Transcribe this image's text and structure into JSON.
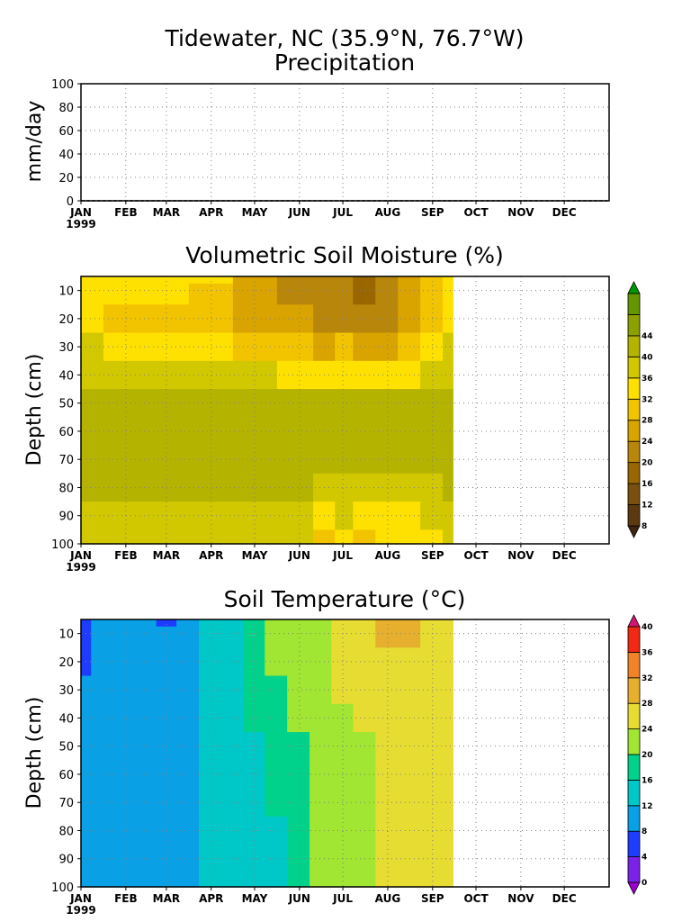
{
  "figure": {
    "title": "Tidewater, NC  (35.9°N, 76.7°W)",
    "colors": {
      "axis": "#000000",
      "grid": "#808080",
      "background": "#ffffff"
    }
  },
  "chart_data": [
    {
      "type": "line",
      "title": "Precipitation",
      "ylabel": "mm/day",
      "xlabel": "",
      "x_ticks": [
        "JAN",
        "FEB",
        "MAR",
        "APR",
        "MAY",
        "JUN",
        "JUL",
        "AUG",
        "SEP",
        "OCT",
        "NOV",
        "DEC"
      ],
      "year_label": "1999",
      "xlim": [
        "1999-01-01",
        "1999-12-31"
      ],
      "y_ticks": [
        0,
        20,
        40,
        60,
        80,
        100
      ],
      "ylim": [
        0,
        100
      ],
      "grid": true,
      "series": [
        {
          "values": [
            0,
            0,
            0,
            0,
            0,
            0,
            0,
            0,
            0,
            0,
            0,
            0,
            0,
            0,
            0,
            0,
            0,
            0,
            0,
            0,
            0,
            0,
            0,
            0,
            0,
            0,
            0,
            0,
            0,
            0,
            0,
            0,
            0,
            0,
            0,
            0,
            0,
            0
          ],
          "x_start": "1999-01-01",
          "x_end": "1999-12-31"
        }
      ]
    },
    {
      "type": "heatmap",
      "title": "Volumetric Soil Moisture (%)",
      "ylabel": "Depth (cm)",
      "x_ticks": [
        "JAN",
        "FEB",
        "MAR",
        "APR",
        "MAY",
        "JUN",
        "JUL",
        "AUG",
        "SEP",
        "OCT",
        "NOV",
        "DEC"
      ],
      "year_label": "1999",
      "y_ticks": [
        10,
        20,
        30,
        40,
        50,
        60,
        70,
        80,
        90,
        100
      ],
      "ylim": [
        5,
        100
      ],
      "y_inverted": true,
      "data_end": "1999-09-15",
      "grid": true,
      "colorbar": {
        "labels": [
          "8",
          "12",
          "16",
          "20",
          "24",
          "28",
          "32",
          "36",
          "40",
          "44"
        ],
        "colors": [
          "#3d2510",
          "#5b3a10",
          "#7a5010",
          "#996600",
          "#b8860b",
          "#d9a300",
          "#f2c400",
          "#ffe100",
          "#d2c800",
          "#b4b400",
          "#8ca000",
          "#649600",
          "#009600"
        ]
      },
      "depths": [
        5,
        10,
        20,
        30,
        40,
        50,
        60,
        70,
        80,
        90,
        100
      ],
      "dates": [
        "1999-01-01",
        "1999-02-01",
        "1999-03-01",
        "1999-04-01",
        "1999-05-01",
        "1999-06-01",
        "1999-06-20",
        "1999-07-01",
        "1999-07-15",
        "1999-08-01",
        "1999-08-15",
        "1999-09-01",
        "1999-09-15"
      ],
      "values": [
        [
          35,
          34,
          33,
          33,
          25,
          22,
          21,
          22,
          19,
          21,
          25,
          30,
          35
        ],
        [
          34,
          33,
          32,
          31,
          26,
          23,
          22,
          21,
          18,
          21,
          24,
          30,
          35
        ],
        [
          32,
          31,
          31,
          30,
          26,
          24,
          23,
          22,
          20,
          22,
          25,
          30,
          34
        ],
        [
          36,
          35,
          35,
          34,
          31,
          29,
          27,
          28,
          26,
          27,
          29,
          32,
          36
        ],
        [
          38,
          38,
          38,
          37,
          36,
          35,
          34,
          34,
          33,
          34,
          35,
          36,
          38
        ],
        [
          41,
          41,
          41,
          41,
          41,
          41,
          41,
          41,
          41,
          41,
          41,
          41,
          42
        ],
        [
          41,
          41,
          41,
          41,
          41,
          41,
          41,
          41,
          41,
          41,
          41,
          41,
          43
        ],
        [
          41,
          41,
          41,
          41,
          41,
          41,
          41,
          41,
          40,
          40,
          40,
          40,
          41
        ],
        [
          40,
          40,
          40,
          40,
          40,
          40,
          39,
          38,
          37,
          38,
          38,
          39,
          40
        ],
        [
          38,
          38,
          38,
          38,
          37,
          37,
          33,
          36,
          34,
          35,
          35,
          36,
          38
        ],
        [
          37,
          37,
          37,
          37,
          37,
          36,
          30,
          35,
          31,
          33,
          34,
          35,
          37
        ]
      ]
    },
    {
      "type": "heatmap",
      "title": "Soil Temperature (°C)",
      "ylabel": "Depth (cm)",
      "x_ticks": [
        "JAN",
        "FEB",
        "MAR",
        "APR",
        "MAY",
        "JUN",
        "JUL",
        "AUG",
        "SEP",
        "OCT",
        "NOV",
        "DEC"
      ],
      "year_label": "1999",
      "y_ticks": [
        10,
        20,
        30,
        40,
        50,
        60,
        70,
        80,
        90,
        100
      ],
      "ylim": [
        5,
        100
      ],
      "y_inverted": true,
      "data_end": "1999-09-15",
      "grid": true,
      "colorbar": {
        "labels": [
          "0",
          "4",
          "8",
          "12",
          "16",
          "20",
          "24",
          "28",
          "32",
          "36",
          "40"
        ],
        "colors": [
          "#9900cc",
          "#7a22e6",
          "#1e3cff",
          "#0aa0e6",
          "#00c8c8",
          "#00d28c",
          "#a0e632",
          "#e6dc32",
          "#e6af2d",
          "#f08228",
          "#f02814",
          "#d2186e"
        ]
      },
      "depths": [
        5,
        10,
        20,
        30,
        40,
        50,
        60,
        70,
        80,
        90,
        100
      ],
      "dates": [
        "1999-01-01",
        "1999-01-15",
        "1999-02-01",
        "1999-02-15",
        "1999-03-01",
        "1999-03-15",
        "1999-04-01",
        "1999-04-15",
        "1999-05-01",
        "1999-05-15",
        "1999-06-01",
        "1999-06-15",
        "1999-07-01",
        "1999-07-15",
        "1999-08-01",
        "1999-08-15",
        "1999-09-01",
        "1999-09-15"
      ],
      "values": [
        [
          7,
          9,
          9,
          10,
          7,
          9,
          13,
          15,
          18,
          21,
          21,
          23,
          25,
          26,
          28,
          28,
          25,
          25
        ],
        [
          7,
          9,
          9,
          10,
          8,
          9,
          13,
          15,
          18,
          20,
          21,
          23,
          25,
          26,
          28,
          28,
          25,
          25
        ],
        [
          7,
          10,
          10,
          10,
          9,
          10,
          13,
          15,
          18,
          20,
          21,
          23,
          25,
          26,
          27,
          26,
          25,
          25
        ],
        [
          9,
          10,
          10,
          10,
          10,
          11,
          12,
          14,
          17,
          19,
          21,
          22,
          24,
          25,
          25,
          25,
          25,
          25
        ],
        [
          10,
          10,
          10,
          10,
          10,
          11,
          12,
          14,
          16,
          18,
          20,
          21,
          23,
          24,
          24,
          25,
          25,
          25
        ],
        [
          10,
          10,
          11,
          11,
          11,
          11,
          12,
          13,
          15,
          17,
          19,
          20,
          22,
          23,
          24,
          24,
          25,
          25
        ],
        [
          10,
          10,
          11,
          11,
          11,
          11,
          12,
          13,
          15,
          16,
          18,
          20,
          21,
          22,
          24,
          24,
          25,
          25
        ],
        [
          10,
          10,
          11,
          11,
          11,
          11,
          12,
          13,
          15,
          16,
          17,
          20,
          21,
          22,
          24,
          24,
          25,
          25
        ],
        [
          10,
          10,
          11,
          11,
          11,
          11,
          12,
          13,
          14,
          15,
          17,
          20,
          21,
          22,
          24,
          24,
          25,
          25
        ],
        [
          10,
          10,
          11,
          11,
          11,
          11,
          12,
          13,
          14,
          15,
          17,
          21,
          21,
          22,
          24,
          24,
          25,
          25
        ],
        [
          10,
          10,
          11,
          11,
          11,
          11,
          12,
          13,
          14,
          15,
          17,
          21,
          21,
          22,
          24,
          24,
          25,
          25
        ]
      ]
    }
  ]
}
